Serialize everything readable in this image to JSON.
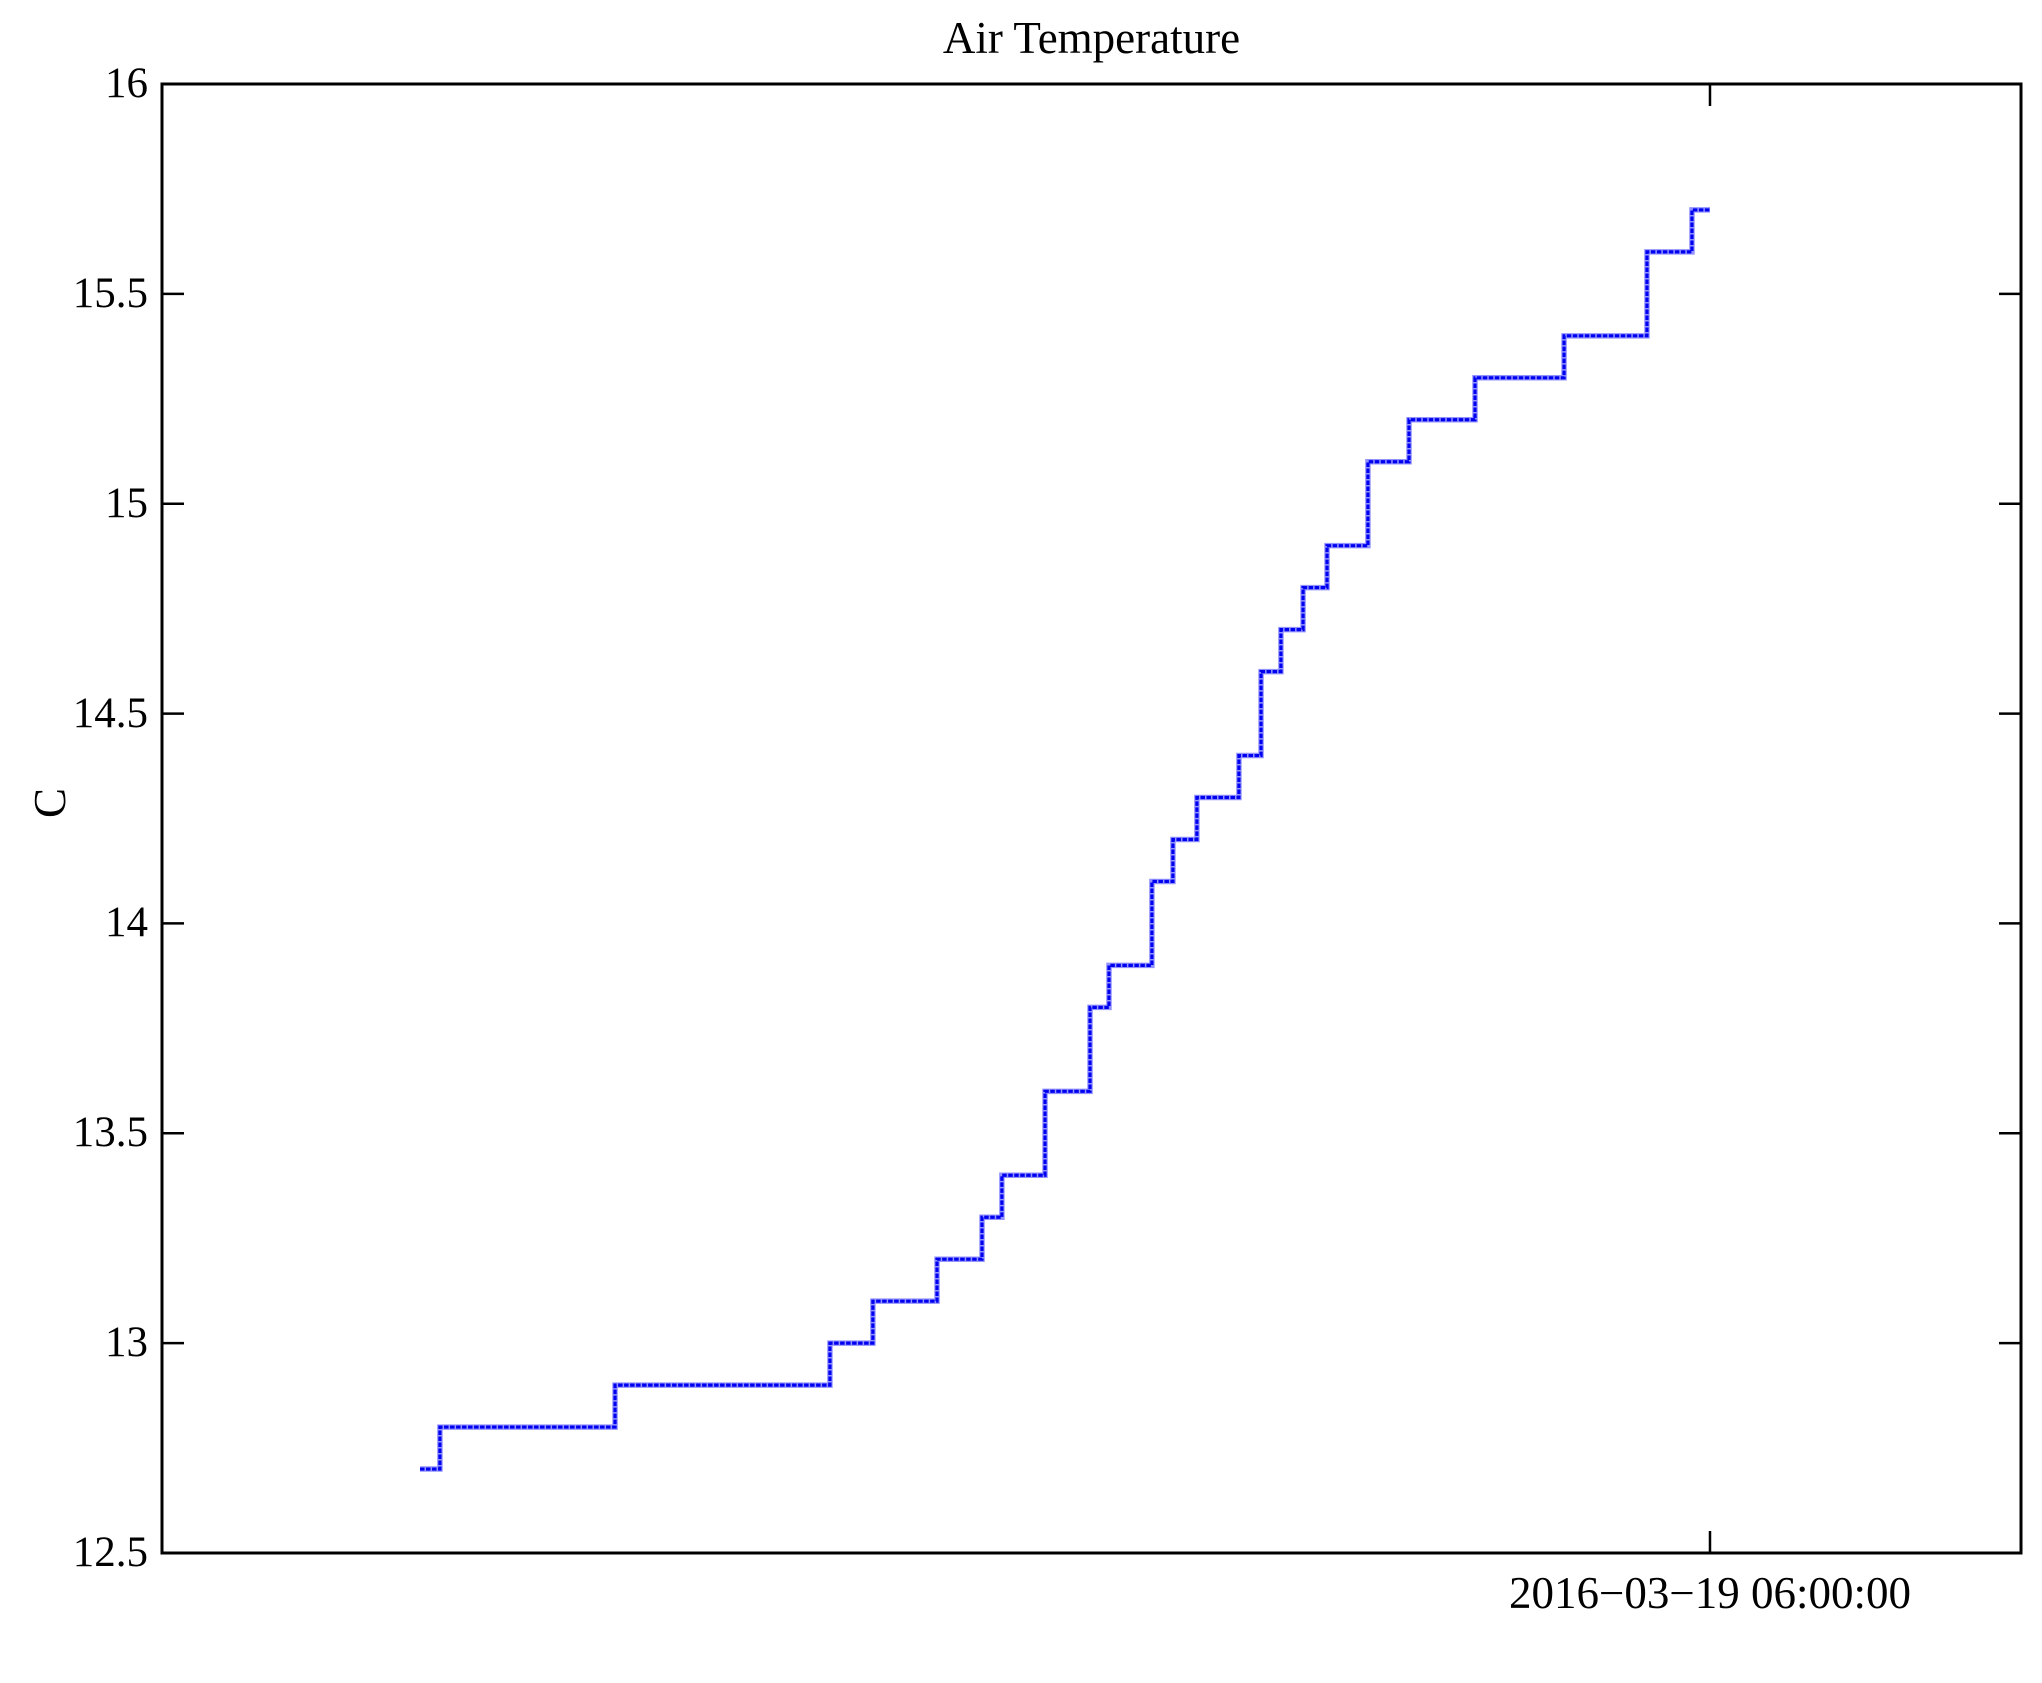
{
  "figure": {
    "title": "Air Temperature",
    "y_axis_label": "C",
    "x_tick_label": "2016−03−19 06:00:00",
    "background_color": "#FFFFFF",
    "axis_color": "#000000",
    "line_color": "#0000F0",
    "line_halo_color": "#9393FF"
  },
  "chart_data": {
    "type": "line",
    "line_style": "step",
    "title": "Air Temperature",
    "xlabel": "",
    "ylabel": "C",
    "ylim": [
      12.5,
      16
    ],
    "grid": false,
    "legend": "none",
    "y_ticks": [
      {
        "value": 12.5,
        "label": "12.5"
      },
      {
        "value": 13,
        "label": "13"
      },
      {
        "value": 13.5,
        "label": "13.5"
      },
      {
        "value": 14,
        "label": "14"
      },
      {
        "value": 14.5,
        "label": "14.5"
      },
      {
        "value": 15,
        "label": "15"
      },
      {
        "value": 15.5,
        "label": "15.5"
      },
      {
        "value": 16,
        "label": "16"
      }
    ],
    "x_ticks": [
      {
        "label": "2016−03−19 06:00:00",
        "position_frac": 0.8327
      }
    ],
    "series": [
      {
        "name": "Air Temperature (C)",
        "note": "steps given as [start_frac_of_x_axis, end_frac_of_x_axis, temperature_C]; line ends at the 06:00:00 tick",
        "steps": [
          [
            0.1388,
            0.1495,
            12.7
          ],
          [
            0.1495,
            0.2437,
            12.8
          ],
          [
            0.2437,
            0.3593,
            12.9
          ],
          [
            0.3593,
            0.3824,
            13.0
          ],
          [
            0.3824,
            0.4169,
            13.1
          ],
          [
            0.4169,
            0.4411,
            13.2
          ],
          [
            0.4411,
            0.4518,
            13.3
          ],
          [
            0.4518,
            0.475,
            13.4
          ],
          [
            0.475,
            0.4992,
            13.6
          ],
          [
            0.4992,
            0.5094,
            13.8
          ],
          [
            0.5094,
            0.5325,
            13.9
          ],
          [
            0.5325,
            0.5438,
            14.1
          ],
          [
            0.5438,
            0.5567,
            14.2
          ],
          [
            0.5567,
            0.5793,
            14.3
          ],
          [
            0.5793,
            0.5912,
            14.4
          ],
          [
            0.5912,
            0.6019,
            14.6
          ],
          [
            0.6019,
            0.6138,
            14.7
          ],
          [
            0.6138,
            0.6267,
            14.8
          ],
          [
            0.6267,
            0.6487,
            14.9
          ],
          [
            0.6487,
            0.6708,
            15.1
          ],
          [
            0.6708,
            0.7063,
            15.2
          ],
          [
            0.7063,
            0.7542,
            15.3
          ],
          [
            0.7542,
            0.7988,
            15.4
          ],
          [
            0.7988,
            0.823,
            15.6
          ],
          [
            0.823,
            0.8327,
            15.7
          ]
        ]
      }
    ]
  }
}
